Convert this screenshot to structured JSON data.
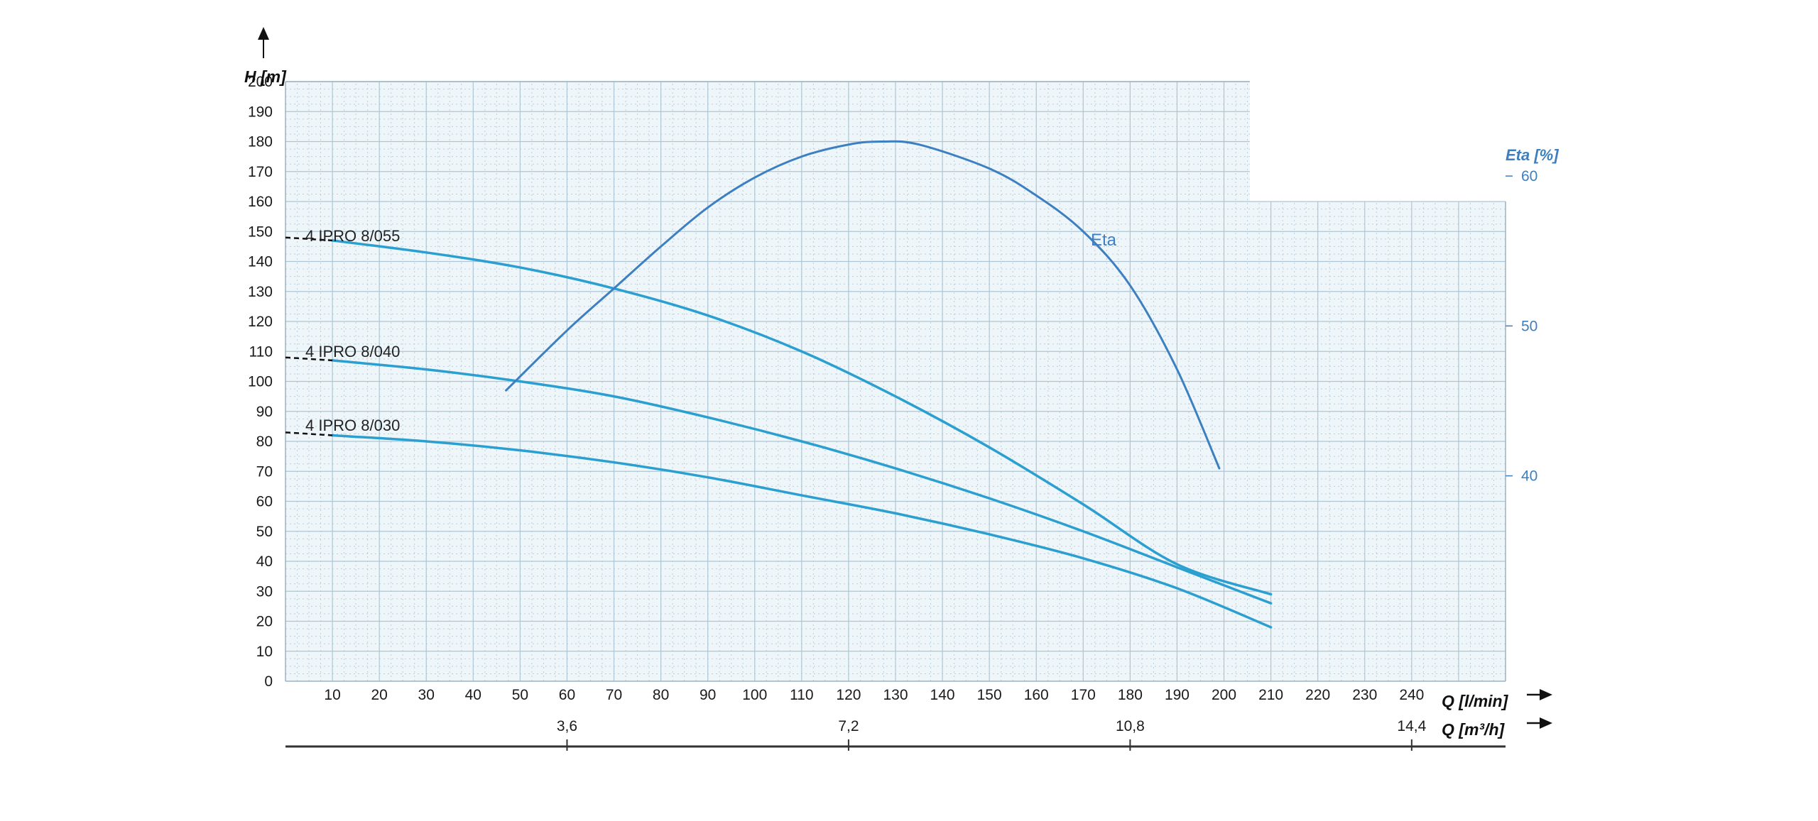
{
  "chart_data": {
    "type": "line",
    "title": "",
    "ylabel": "H [m]",
    "ylabel_right": "Eta [%]",
    "xlabel": "Q [l/min]",
    "xlabel2": "Q [m³/h]",
    "xlim": [
      0,
      260
    ],
    "ylim": [
      0,
      200
    ],
    "y_ticks": [
      0,
      10,
      20,
      30,
      40,
      50,
      60,
      70,
      80,
      90,
      100,
      110,
      120,
      130,
      140,
      150,
      160,
      170,
      180,
      190,
      200
    ],
    "x_ticks": [
      10,
      20,
      30,
      40,
      50,
      60,
      70,
      80,
      90,
      100,
      110,
      120,
      130,
      140,
      150,
      160,
      170,
      180,
      190,
      200,
      210,
      220,
      230,
      240
    ],
    "x2_ticks": [
      {
        "label": "3,6",
        "x": 60
      },
      {
        "label": "7,2",
        "x": 120
      },
      {
        "label": "10,8",
        "x": 180
      },
      {
        "label": "14,4",
        "x": 240
      }
    ],
    "eta_ticks": [
      {
        "label": "40",
        "h": 68.5
      },
      {
        "label": "50",
        "h": 118.5
      },
      {
        "label": "60",
        "h": 168.5
      }
    ],
    "grid": true,
    "series": [
      {
        "name": "4 IPRO 8/055",
        "color": "#2a9fd0",
        "dashed_start": [
          0,
          148
        ],
        "x": [
          10,
          30,
          50,
          70,
          90,
          110,
          130,
          150,
          170,
          190,
          210
        ],
        "y": [
          147,
          143,
          138,
          131,
          122,
          110,
          95,
          78,
          59,
          39,
          29
        ]
      },
      {
        "name": "4 IPRO 8/040",
        "color": "#2a9fd0",
        "dashed_start": [
          0,
          108
        ],
        "x": [
          10,
          30,
          50,
          70,
          90,
          110,
          130,
          150,
          170,
          190,
          210
        ],
        "y": [
          107,
          104,
          100,
          95,
          88,
          80,
          71,
          61,
          50,
          38,
          26
        ]
      },
      {
        "name": "4 IPRO 8/030",
        "color": "#2a9fd0",
        "dashed_start": [
          0,
          83
        ],
        "x": [
          10,
          30,
          50,
          70,
          90,
          110,
          130,
          150,
          170,
          190,
          210
        ],
        "y": [
          82,
          80,
          77,
          73,
          68,
          62,
          56,
          49,
          41,
          31,
          18
        ]
      },
      {
        "name": "Eta",
        "color": "#3d7fc0",
        "x": [
          47,
          60,
          70,
          80,
          90,
          100,
          110,
          120,
          127,
          135,
          150,
          160,
          170,
          180,
          190,
          199
        ],
        "y": [
          97,
          117,
          131,
          145,
          158,
          168,
          175,
          179,
          180,
          179,
          171,
          162,
          150,
          132,
          104,
          71
        ]
      }
    ]
  }
}
